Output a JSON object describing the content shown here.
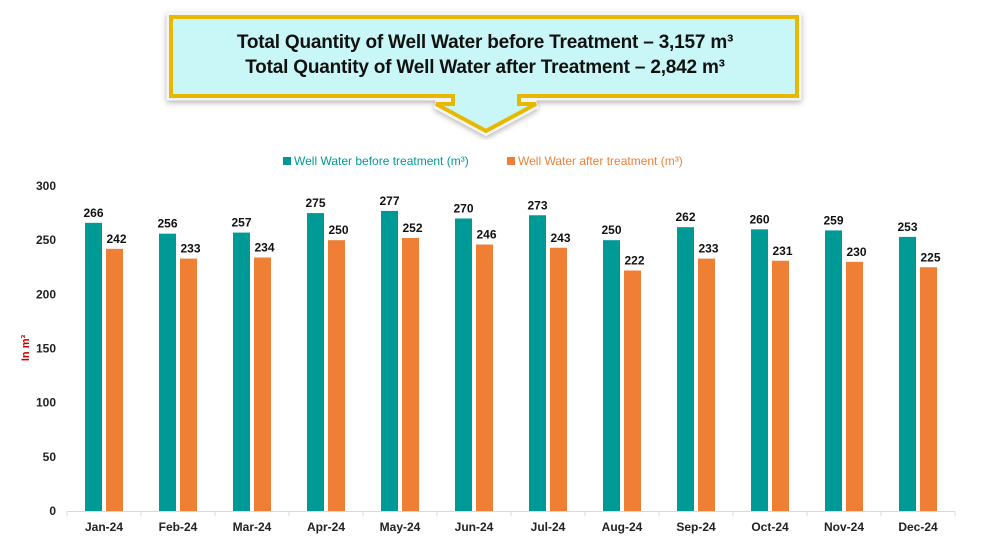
{
  "callout": {
    "line1": "Total Quantity of Well Water before Treatment – 3,157 m³",
    "line2": "Total Quantity of Well Water after Treatment – 2,842 m³",
    "fill_color": "#c9f6f6",
    "border_color": "#e8b800"
  },
  "chart_data": {
    "type": "bar",
    "title": "",
    "xlabel": "",
    "ylabel": "In m³",
    "ylim": [
      0,
      300
    ],
    "yticks": [
      0,
      50,
      100,
      150,
      200,
      250,
      300
    ],
    "grid": false,
    "legend_position": "top-center",
    "categories": [
      "Jan-24",
      "Feb-24",
      "Mar-24",
      "Apr-24",
      "May-24",
      "Jun-24",
      "Jul-24",
      "Aug-24",
      "Sep-24",
      "Oct-24",
      "Nov-24",
      "Dec-24"
    ],
    "series": [
      {
        "name": "Well Water before treatment (m³)",
        "color": "#009a96",
        "values": [
          266,
          256,
          257,
          275,
          277,
          270,
          273,
          250,
          262,
          260,
          259,
          253
        ]
      },
      {
        "name": "Well Water after treatment (m³)",
        "color": "#ee7f35",
        "values": [
          242,
          233,
          234,
          250,
          252,
          246,
          243,
          222,
          233,
          231,
          230,
          225
        ]
      }
    ],
    "ylabel_color": "#cc0000"
  }
}
